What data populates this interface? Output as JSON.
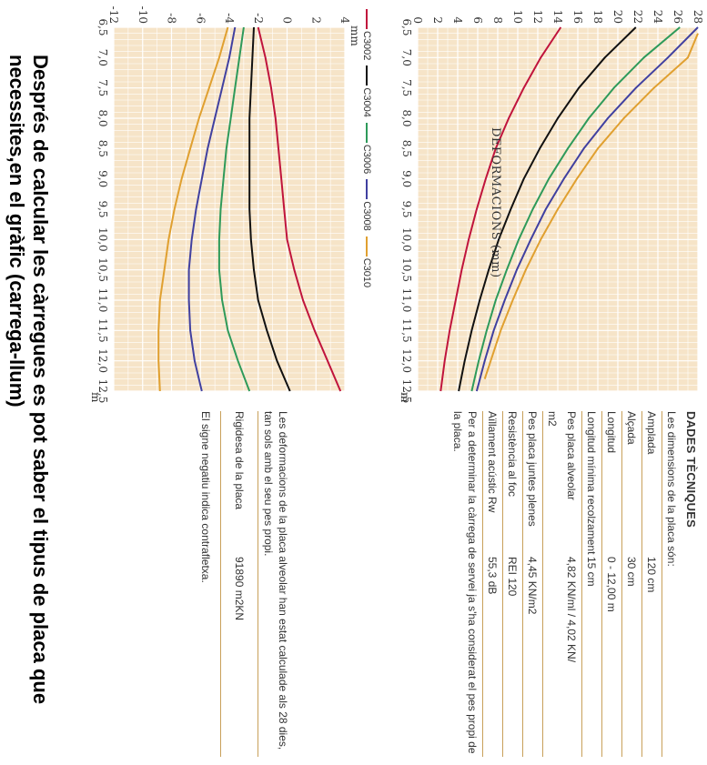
{
  "chart_data": [
    {
      "type": "line",
      "title": "",
      "xlabel": "m",
      "ylabel": "",
      "x_ticks": [
        "6,5",
        "7,0",
        "7,5",
        "8,0",
        "8,5",
        "9,0",
        "9,5",
        "10,0",
        "10,5",
        "11,0",
        "11,5",
        "12,0",
        "12,5"
      ],
      "y_ticks": [
        "0",
        "2",
        "4",
        "6",
        "8",
        "10",
        "12",
        "14",
        "16",
        "18",
        "20",
        "22",
        "24",
        "26",
        "28"
      ],
      "xlim": [
        6.5,
        12.5
      ],
      "ylim": [
        0,
        28
      ],
      "grid": true,
      "series": [
        {
          "name": "C3002",
          "color": "#c0143c",
          "x": [
            6.5,
            7.0,
            7.5,
            8.0,
            8.5,
            9.0,
            9.5,
            10.0,
            10.5,
            11.0,
            11.5,
            12.0,
            12.5
          ],
          "y": [
            14.3,
            12.3,
            10.6,
            9.1,
            7.8,
            6.8,
            5.9,
            5.1,
            4.4,
            3.8,
            3.2,
            2.7,
            2.3
          ]
        },
        {
          "name": "C3004",
          "color": "#111111",
          "x": [
            6.5,
            7.0,
            7.5,
            8.0,
            8.5,
            9.0,
            9.5,
            10.0,
            10.5,
            11.0,
            11.5,
            12.0,
            12.5
          ],
          "y": [
            21.8,
            18.7,
            16.1,
            14.0,
            12.2,
            10.6,
            9.3,
            8.1,
            7.1,
            6.2,
            5.4,
            4.7,
            4.1
          ]
        },
        {
          "name": "C3006",
          "color": "#2e9a5a",
          "x": [
            6.5,
            7.0,
            7.5,
            8.0,
            8.5,
            9.0,
            9.5,
            10.0,
            10.5,
            11.0,
            11.5,
            12.0,
            12.5
          ],
          "y": [
            26.2,
            22.6,
            19.6,
            17.1,
            15.0,
            13.1,
            11.5,
            10.1,
            8.9,
            7.8,
            6.9,
            6.1,
            5.4
          ]
        },
        {
          "name": "C3008",
          "color": "#4040a0",
          "x": [
            6.5,
            7.0,
            7.5,
            8.0,
            8.5,
            9.0,
            9.5,
            10.0,
            10.5,
            11.0,
            11.5,
            12.0,
            12.5
          ],
          "y": [
            28.0,
            25.0,
            21.8,
            19.0,
            16.6,
            14.6,
            12.8,
            11.3,
            9.9,
            8.7,
            7.6,
            6.7,
            5.9
          ]
        },
        {
          "name": "C3010",
          "color": "#e0a030",
          "x": [
            6.6,
            7.0,
            7.5,
            8.0,
            8.5,
            9.0,
            9.5,
            10.0,
            10.5,
            11.0,
            11.5,
            12.0,
            12.3
          ],
          "y": [
            28.0,
            27.0,
            23.6,
            20.6,
            18.0,
            15.9,
            14.0,
            12.3,
            10.8,
            9.5,
            8.3,
            7.3,
            6.7
          ]
        }
      ]
    },
    {
      "type": "line",
      "title": "DEFORMACIONS (mm)",
      "xlabel": "m",
      "ylabel": "mm",
      "x_ticks": [
        "6,5",
        "7,0",
        "7,5",
        "8,0",
        "8,5",
        "9,0",
        "9,5",
        "10,0",
        "10,5",
        "11,0",
        "11,5",
        "12,0",
        "12,5"
      ],
      "y_ticks": [
        "-12",
        "-10",
        "-8",
        "-6",
        "-4",
        "-2",
        "0",
        "2",
        "4"
      ],
      "xlim": [
        6.5,
        12.5
      ],
      "ylim": [
        -12,
        4
      ],
      "grid": true,
      "series": [
        {
          "name": "C3002",
          "color": "#c0143c",
          "x": [
            6.5,
            7.0,
            7.5,
            8.0,
            8.5,
            9.0,
            9.5,
            10.0,
            10.5,
            11.0,
            11.5,
            12.0,
            12.5
          ],
          "y": [
            -2.0,
            -1.5,
            -1.1,
            -0.8,
            -0.6,
            -0.4,
            -0.2,
            0.0,
            0.5,
            1.1,
            1.9,
            2.8,
            3.7
          ]
        },
        {
          "name": "C3004",
          "color": "#111111",
          "x": [
            6.5,
            7.0,
            7.5,
            8.0,
            8.5,
            9.0,
            9.5,
            10.0,
            10.5,
            11.0,
            11.5,
            12.0,
            12.5
          ],
          "y": [
            -2.3,
            -2.4,
            -2.5,
            -2.6,
            -2.6,
            -2.6,
            -2.6,
            -2.5,
            -2.3,
            -2.0,
            -1.4,
            -0.7,
            0.2
          ]
        },
        {
          "name": "C3006",
          "color": "#2e9a5a",
          "x": [
            6.5,
            7.0,
            7.5,
            8.0,
            8.5,
            9.0,
            9.5,
            10.0,
            10.5,
            11.0,
            11.5,
            12.0,
            12.5
          ],
          "y": [
            -3.0,
            -3.3,
            -3.6,
            -3.9,
            -4.2,
            -4.4,
            -4.6,
            -4.7,
            -4.7,
            -4.5,
            -4.1,
            -3.4,
            -2.6
          ]
        },
        {
          "name": "C3008",
          "color": "#4040a0",
          "x": [
            6.5,
            7.0,
            7.5,
            8.0,
            8.5,
            9.0,
            9.5,
            10.0,
            10.5,
            11.0,
            11.5,
            12.0,
            12.5
          ],
          "y": [
            -3.6,
            -4.0,
            -4.5,
            -5.0,
            -5.5,
            -5.9,
            -6.3,
            -6.6,
            -6.8,
            -6.8,
            -6.7,
            -6.4,
            -5.9
          ]
        },
        {
          "name": "C3010",
          "color": "#e0a030",
          "x": [
            6.5,
            7.0,
            7.5,
            8.0,
            8.5,
            9.0,
            9.5,
            10.0,
            10.5,
            11.0,
            11.5,
            12.0,
            12.5
          ],
          "y": [
            -4.1,
            -4.7,
            -5.4,
            -6.1,
            -6.7,
            -7.3,
            -7.8,
            -8.2,
            -8.5,
            -8.8,
            -8.9,
            -8.9,
            -8.8
          ]
        }
      ]
    }
  ],
  "specs": {
    "title": "DADES TÈCNIQUES",
    "intro": "Les dimensions de la placa són:",
    "rows1": [
      {
        "label": "Amplada",
        "value": "120 cm"
      },
      {
        "label": "Alçada",
        "value": "30 cm"
      },
      {
        "label": "Longitud",
        "value": "0 - 12,00 m"
      },
      {
        "label": "Longitud mínima recolzament",
        "value": "15 cm"
      },
      {
        "label": "Pes placa alveolar",
        "value": "4,82 KN/ml / 4,02 KN/"
      },
      {
        "label": "m2",
        "value": ""
      },
      {
        "label": "Pes placa juntes plenes",
        "value": "4,45 KN/m2"
      },
      {
        "label": "Resistència al foc",
        "value": "REI 120"
      },
      {
        "label": "Aïllament acústic Rw",
        "value": "55,3 dB"
      }
    ],
    "service_note": "Per a determinar la càrrega de servei ja s'ha considerat el pes propi de la placa.",
    "deform_note": "Les deformacions de la placa alveolar han estat calculade als 28 dies, tan sols amb el seu pes propi.",
    "rigidity_label": "Rigidesa de la placa",
    "rigidity_value": "91890 m2KN",
    "sign_note": "El signe negatiu indica contrafletxa."
  },
  "bottom_text": "Després de calcular les càrregues es pot saber el tipus de placa que necessites,en el gràfic (carrega-llum)"
}
